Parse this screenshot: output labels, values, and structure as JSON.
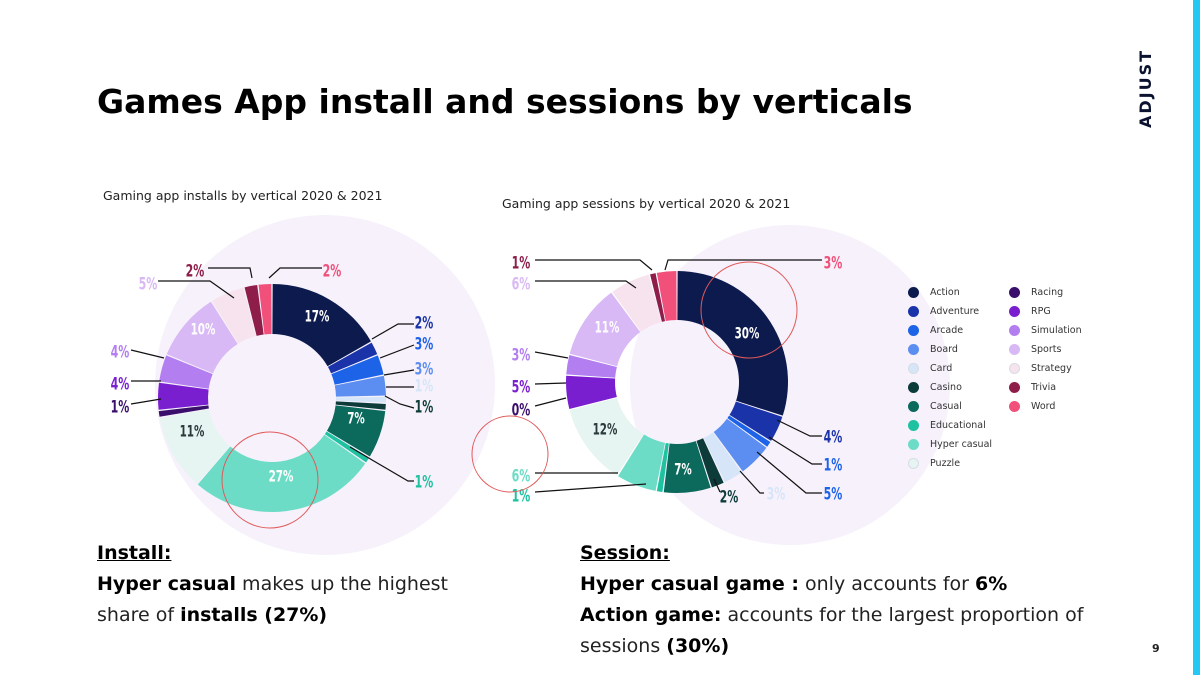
{
  "brand": {
    "logo_text": "ADJUST"
  },
  "title": "Games App install and sessions by verticals",
  "accent_color": "#23c8f5",
  "highlight_color": "#e05a5a",
  "legend": [
    {
      "label": "Action",
      "color": "#0c1a4e"
    },
    {
      "label": "Adventure",
      "color": "#1a33a8"
    },
    {
      "label": "Arcade",
      "color": "#1d63e8"
    },
    {
      "label": "Board",
      "color": "#5b8ef0"
    },
    {
      "label": "Card",
      "color": "#d6e6f8"
    },
    {
      "label": "Casino",
      "color": "#0d3b3a"
    },
    {
      "label": "Casual",
      "color": "#0b6a5c"
    },
    {
      "label": "Educational",
      "color": "#1ec2a0"
    },
    {
      "label": "Hyper casual",
      "color": "#6ddcc6"
    },
    {
      "label": "Puzzle",
      "color": "#e6f5f1"
    },
    {
      "label": "Racing",
      "color": "#3a0f6b"
    },
    {
      "label": "RPG",
      "color": "#7a1fd0"
    },
    {
      "label": "Simulation",
      "color": "#b27ef0"
    },
    {
      "label": "Sports",
      "color": "#d8b8f5"
    },
    {
      "label": "Strategy",
      "color": "#f6e3ee"
    },
    {
      "label": "Trivia",
      "color": "#8e1d4a"
    },
    {
      "label": "Word",
      "color": "#f0507a"
    }
  ],
  "chart_data": [
    {
      "type": "pie",
      "title": "Gaming app installs by vertical 2020 & 2021",
      "categories": [
        "Action",
        "Adventure",
        "Arcade",
        "Board",
        "Card",
        "Casino",
        "Casual",
        "Educational",
        "Hyper casual",
        "Puzzle",
        "Racing",
        "RPG",
        "Simulation",
        "Sports",
        "Strategy",
        "Trivia",
        "Word"
      ],
      "values": [
        17,
        2,
        3,
        3,
        1,
        1,
        7,
        1,
        27,
        11,
        1,
        4,
        4,
        10,
        5,
        2,
        2
      ],
      "labels": [
        "17%",
        "2%",
        "3%",
        "3%",
        "1%",
        "1%",
        "7%",
        "1%",
        "27%",
        "11%",
        "1%",
        "4%",
        "4%",
        "10%",
        "5%",
        "2%",
        "2%"
      ],
      "highlight": "Hyper casual"
    },
    {
      "type": "pie",
      "title": "Gaming app sessions by vertical 2020 & 2021",
      "categories": [
        "Action",
        "Adventure",
        "Arcade",
        "Board",
        "Card",
        "Casino",
        "Casual",
        "Educational",
        "Hyper casual",
        "Puzzle",
        "Racing",
        "RPG",
        "Simulation",
        "Sports",
        "Strategy",
        "Trivia",
        "Word"
      ],
      "values": [
        30,
        4,
        1,
        5,
        3,
        2,
        7,
        1,
        6,
        12,
        0,
        5,
        3,
        11,
        6,
        1,
        3
      ],
      "labels": [
        "30%",
        "4%",
        "1%",
        "5%",
        "3%",
        "2%",
        "7%",
        "1%",
        "6%",
        "12%",
        "0%",
        "5%",
        "3%",
        "11%",
        "6%",
        "1%",
        "3%"
      ],
      "highlight": "Action"
    }
  ],
  "install_summary": {
    "heading": "Install:",
    "line1_bold": "Hyper casual",
    "line1_rest": " makes up the highest",
    "line2_pre": "share of ",
    "line2_bold": "installs (27%)"
  },
  "session_summary": {
    "heading": "Session:",
    "line1_bold": "Hyper casual game :",
    "line1_mid": " only accounts for ",
    "line1_bold2": "6%",
    "line2_bold": "Action game:",
    "line2_rest": " accounts for the largest proportion of",
    "line3_pre": "sessions ",
    "line3_bold": "(30%)"
  },
  "page_number": "9"
}
